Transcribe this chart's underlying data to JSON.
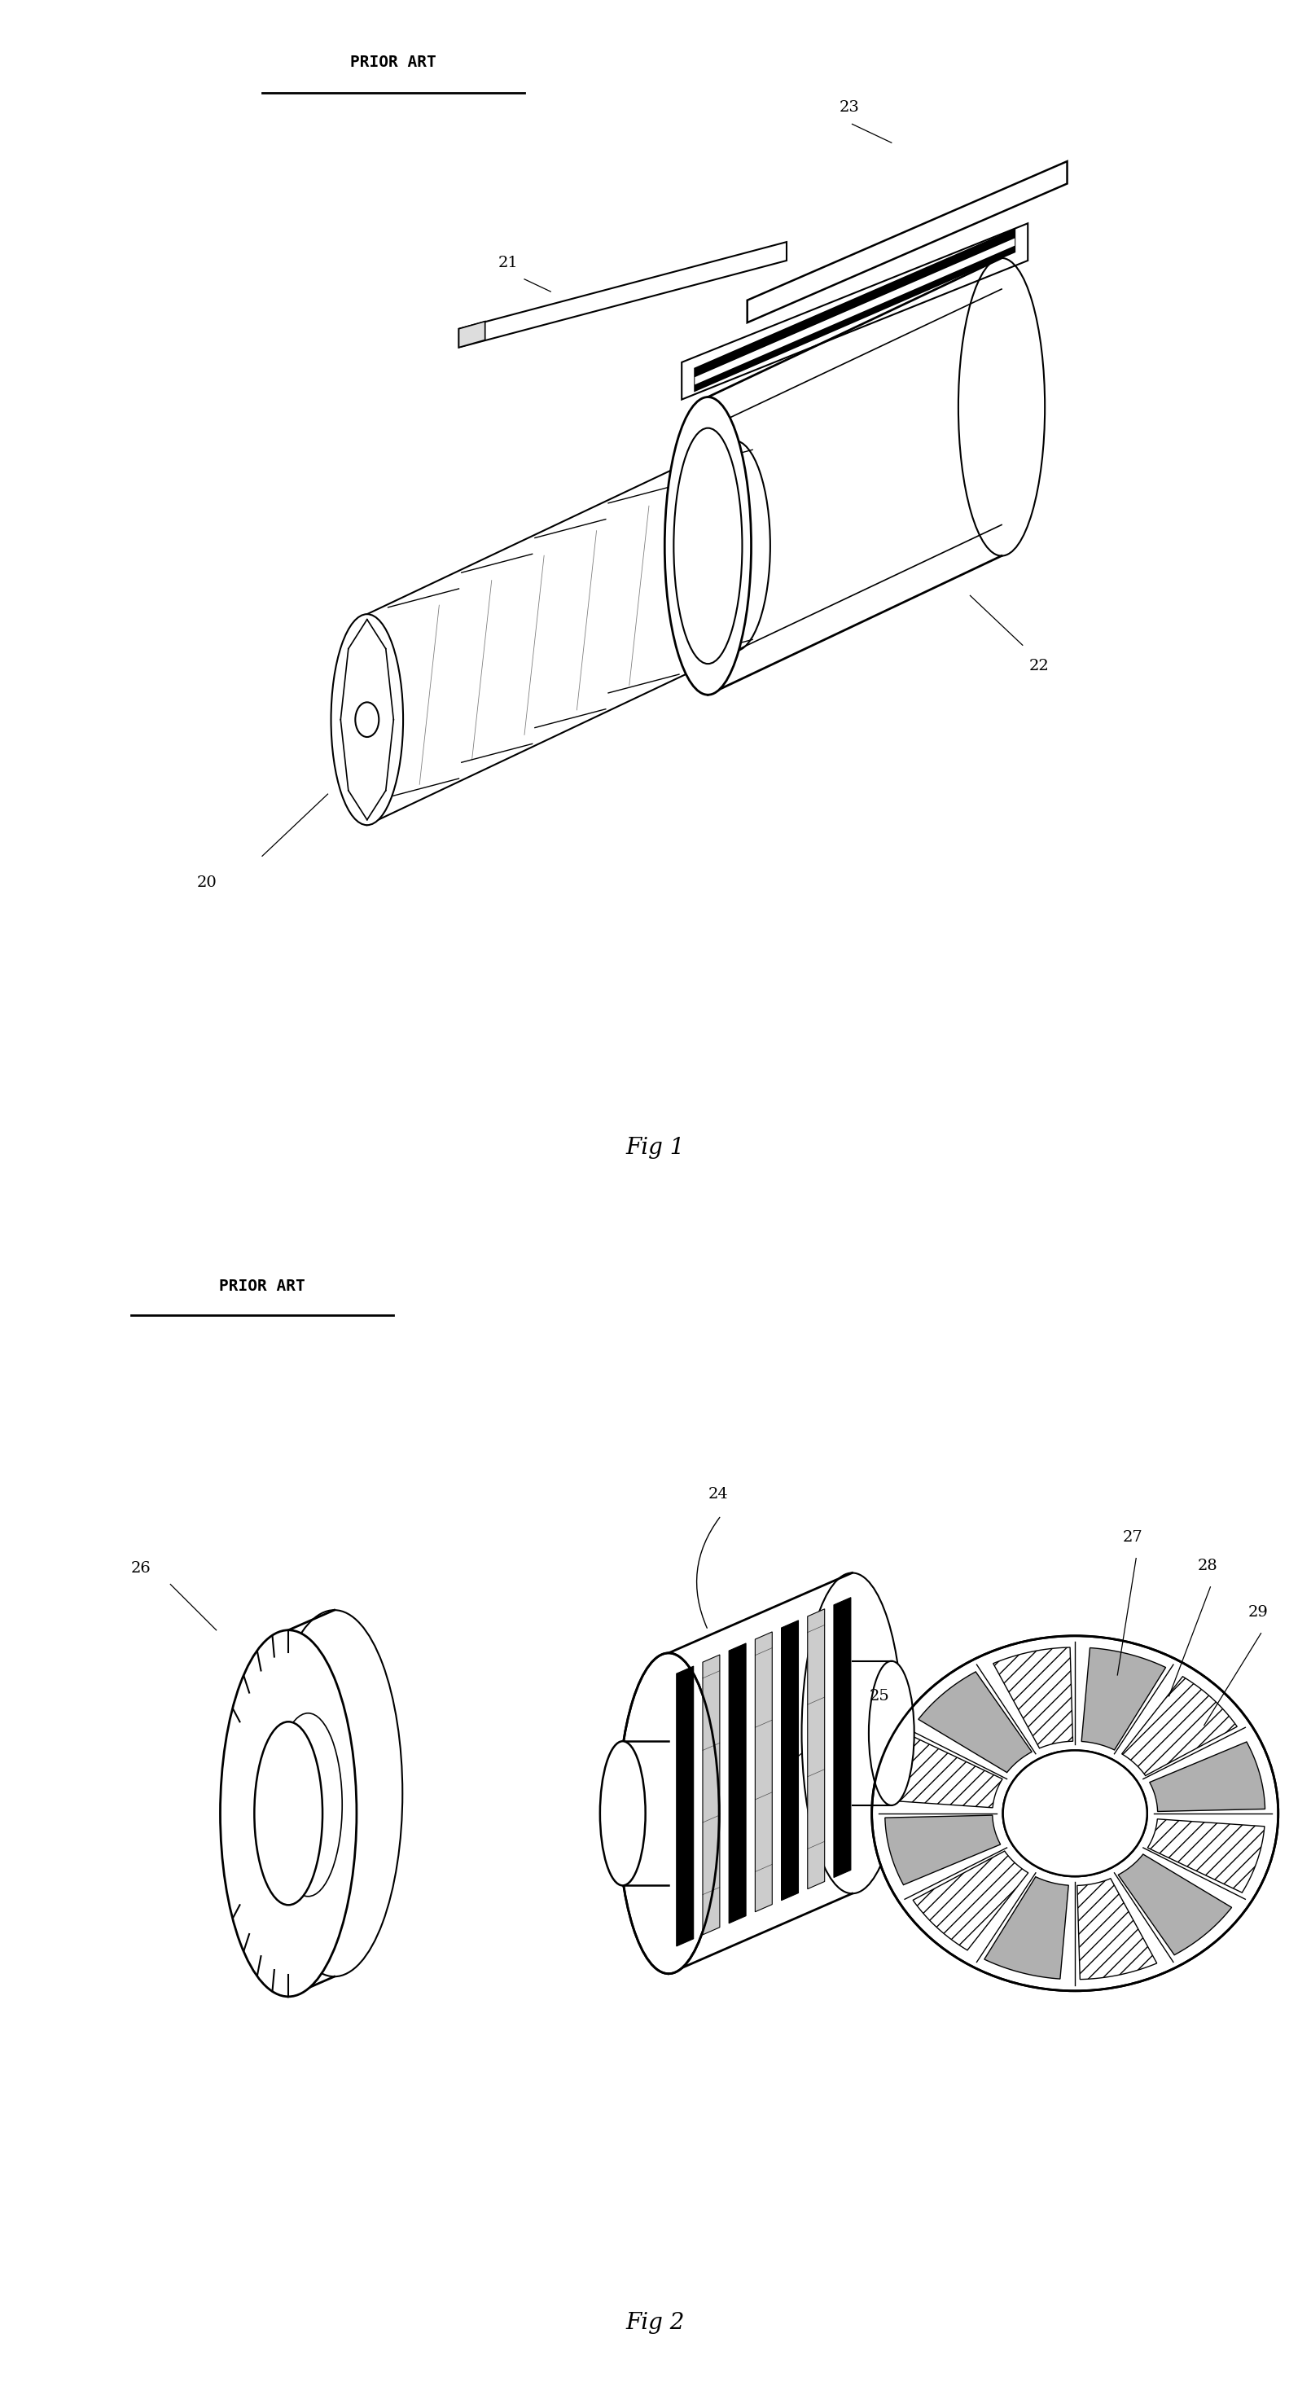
{
  "background_color": "#ffffff",
  "fig_width": 16.1,
  "fig_height": 29.3,
  "title1": "PRIOR ART",
  "title2": "PRIOR ART",
  "fig1_label": "Fig 1",
  "fig2_label": "Fig 2"
}
